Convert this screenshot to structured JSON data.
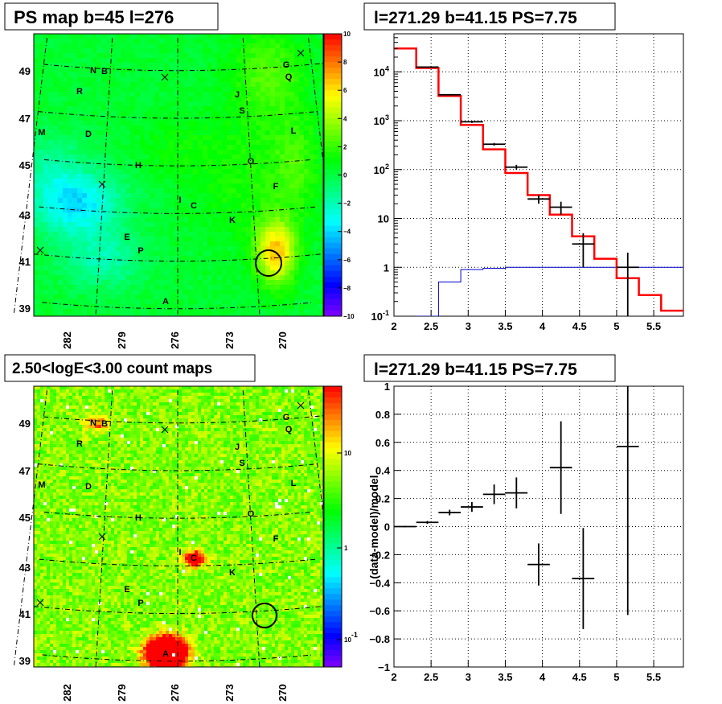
{
  "panels": {
    "ps_map": {
      "title": "PS map b=45 l=276"
    },
    "count_map": {
      "title": "2.50<logE<3.00 count maps"
    },
    "spectrum": {
      "title": "l=271.29 b=41.15 PS=7.75"
    },
    "residual": {
      "title": "l=271.29 b=41.15 PS=7.75"
    }
  },
  "map_axes": {
    "x_ticks": [
      "282",
      "279",
      "276",
      "273",
      "270"
    ],
    "y_ticks": [
      "49",
      "47",
      "45",
      "43",
      "41",
      "39"
    ]
  },
  "ps_colorbar": {
    "min": -10,
    "max": 10,
    "labels": [
      "10",
      "8",
      "6",
      "4",
      "2",
      "0",
      "−2",
      "−4",
      "−6",
      "−8",
      "−10"
    ]
  },
  "count_colorbar": {
    "scale": "log",
    "labels": [
      {
        "base": "10",
        "exp": ""
      },
      {
        "base": "1",
        "exp": ""
      },
      {
        "base": "10",
        "exp": "-1"
      }
    ]
  },
  "sources": [
    "N",
    "B",
    "R",
    "M",
    "D",
    "H",
    "I",
    "C",
    "E",
    "P",
    "A",
    "J",
    "S",
    "G",
    "Q",
    "L",
    "O",
    "F",
    "K"
  ],
  "colors": {
    "data": "#000000",
    "model_total": "#ff0000",
    "model_component": "#0000cc",
    "grid": "#000000",
    "circle": "#000000"
  },
  "chart_data": [
    {
      "panel": "ps_map",
      "type": "heatmap",
      "title": "PS map b=45 l=276",
      "xlabel": "",
      "ylabel": "",
      "x_ticks": [
        "282",
        "279",
        "276",
        "273",
        "270"
      ],
      "y_ticks": [
        "49",
        "47",
        "45",
        "43",
        "41",
        "39"
      ],
      "z_range": [
        -10,
        10
      ],
      "features": {
        "negative_blob_lb": [
          283.5,
          43.8
        ],
        "positive_blob_lb": [
          271.2,
          41.3
        ],
        "marked_circle_lb": [
          271.29,
          41.15
        ]
      }
    },
    {
      "panel": "count_map",
      "type": "heatmap",
      "title": "2.50<logE<3.00 count maps",
      "xlabel": "",
      "ylabel": "",
      "x_ticks": [
        "282",
        "279",
        "276",
        "273",
        "270"
      ],
      "y_ticks": [
        "49",
        "47",
        "45",
        "43",
        "41",
        "39"
      ],
      "z_scale": "log",
      "features": {
        "bright_source_A_lb": [
          277,
          39.3
        ],
        "source_C_lb": [
          275.3,
          43.2
        ],
        "marked_circle_lb": [
          271.29,
          41.15
        ]
      }
    },
    {
      "panel": "spectrum",
      "type": "line",
      "title": "l=271.29 b=41.15 PS=7.75",
      "xlabel": "",
      "ylabel": "",
      "xlim": [
        2,
        5.9
      ],
      "ylim": [
        0.1,
        60000
      ],
      "yscale": "log",
      "x_ticks": [
        "2",
        "2.5",
        "3",
        "3.5",
        "4",
        "4.5",
        "5",
        "5.5"
      ],
      "y_ticks": [
        {
          "base": "10",
          "exp": "-1"
        },
        {
          "base": "1",
          "exp": ""
        },
        {
          "base": "10",
          "exp": ""
        },
        {
          "base": "10",
          "exp": "2"
        },
        {
          "base": "10",
          "exp": "3"
        },
        {
          "base": "10",
          "exp": "4"
        }
      ],
      "grid": true,
      "series": [
        {
          "kind": "step",
          "x_edges": [
            2.0,
            2.3,
            2.6,
            2.9,
            3.2,
            3.5,
            3.8,
            4.1,
            4.4,
            4.7,
            5.0,
            5.3,
            5.6,
            5.9
          ],
          "values": [
            30000,
            12000,
            3200,
            820,
            260,
            85,
            30,
            12,
            4.3,
            1.5,
            0.6,
            0.27,
            0.13
          ]
        },
        {
          "kind": "step",
          "x_edges": [
            2.3,
            2.6,
            2.9,
            3.2,
            3.5,
            5.9
          ],
          "values": [
            0.1,
            0.5,
            0.9,
            0.95,
            1.0
          ]
        },
        {
          "kind": "points",
          "x": [
            2.45,
            2.75,
            3.05,
            3.35,
            3.65,
            3.95,
            4.25,
            4.55,
            5.15
          ],
          "x_halfwidth": 0.15,
          "values": [
            12500,
            3400,
            950,
            330,
            112,
            25,
            17,
            3.0,
            1.0
          ],
          "y_low": [
            12300,
            3300,
            900,
            310,
            100,
            20,
            12,
            1.0,
            0.1
          ],
          "y_high": [
            12700,
            3500,
            1000,
            350,
            125,
            30,
            22,
            5.0,
            2.0
          ]
        }
      ]
    },
    {
      "panel": "residual",
      "type": "scatter",
      "title": "l=271.29 b=41.15 PS=7.75",
      "xlabel": "",
      "ylabel": "(data-model)/model",
      "xlim": [
        2,
        5.9
      ],
      "ylim": [
        -1,
        1
      ],
      "grid": true,
      "x_ticks": [
        "2",
        "2.5",
        "3",
        "3.5",
        "4",
        "4.5",
        "5",
        "5.5"
      ],
      "y_ticks": [
        "1",
        "0.8",
        "0.6",
        "0.4",
        "0.2",
        "0",
        "−0.2",
        "−0.4",
        "−0.6",
        "−0.8",
        "−1"
      ],
      "x": [
        2.15,
        2.45,
        2.75,
        3.05,
        3.35,
        3.65,
        3.95,
        4.25,
        4.55,
        5.15
      ],
      "x_halfwidth": 0.15,
      "values": [
        0.0,
        0.03,
        0.1,
        0.14,
        0.23,
        0.24,
        -0.27,
        0.42,
        -0.37,
        0.57
      ],
      "errors": [
        0.005,
        0.01,
        0.02,
        0.035,
        0.07,
        0.11,
        0.15,
        0.33,
        0.36,
        1.2
      ]
    }
  ]
}
